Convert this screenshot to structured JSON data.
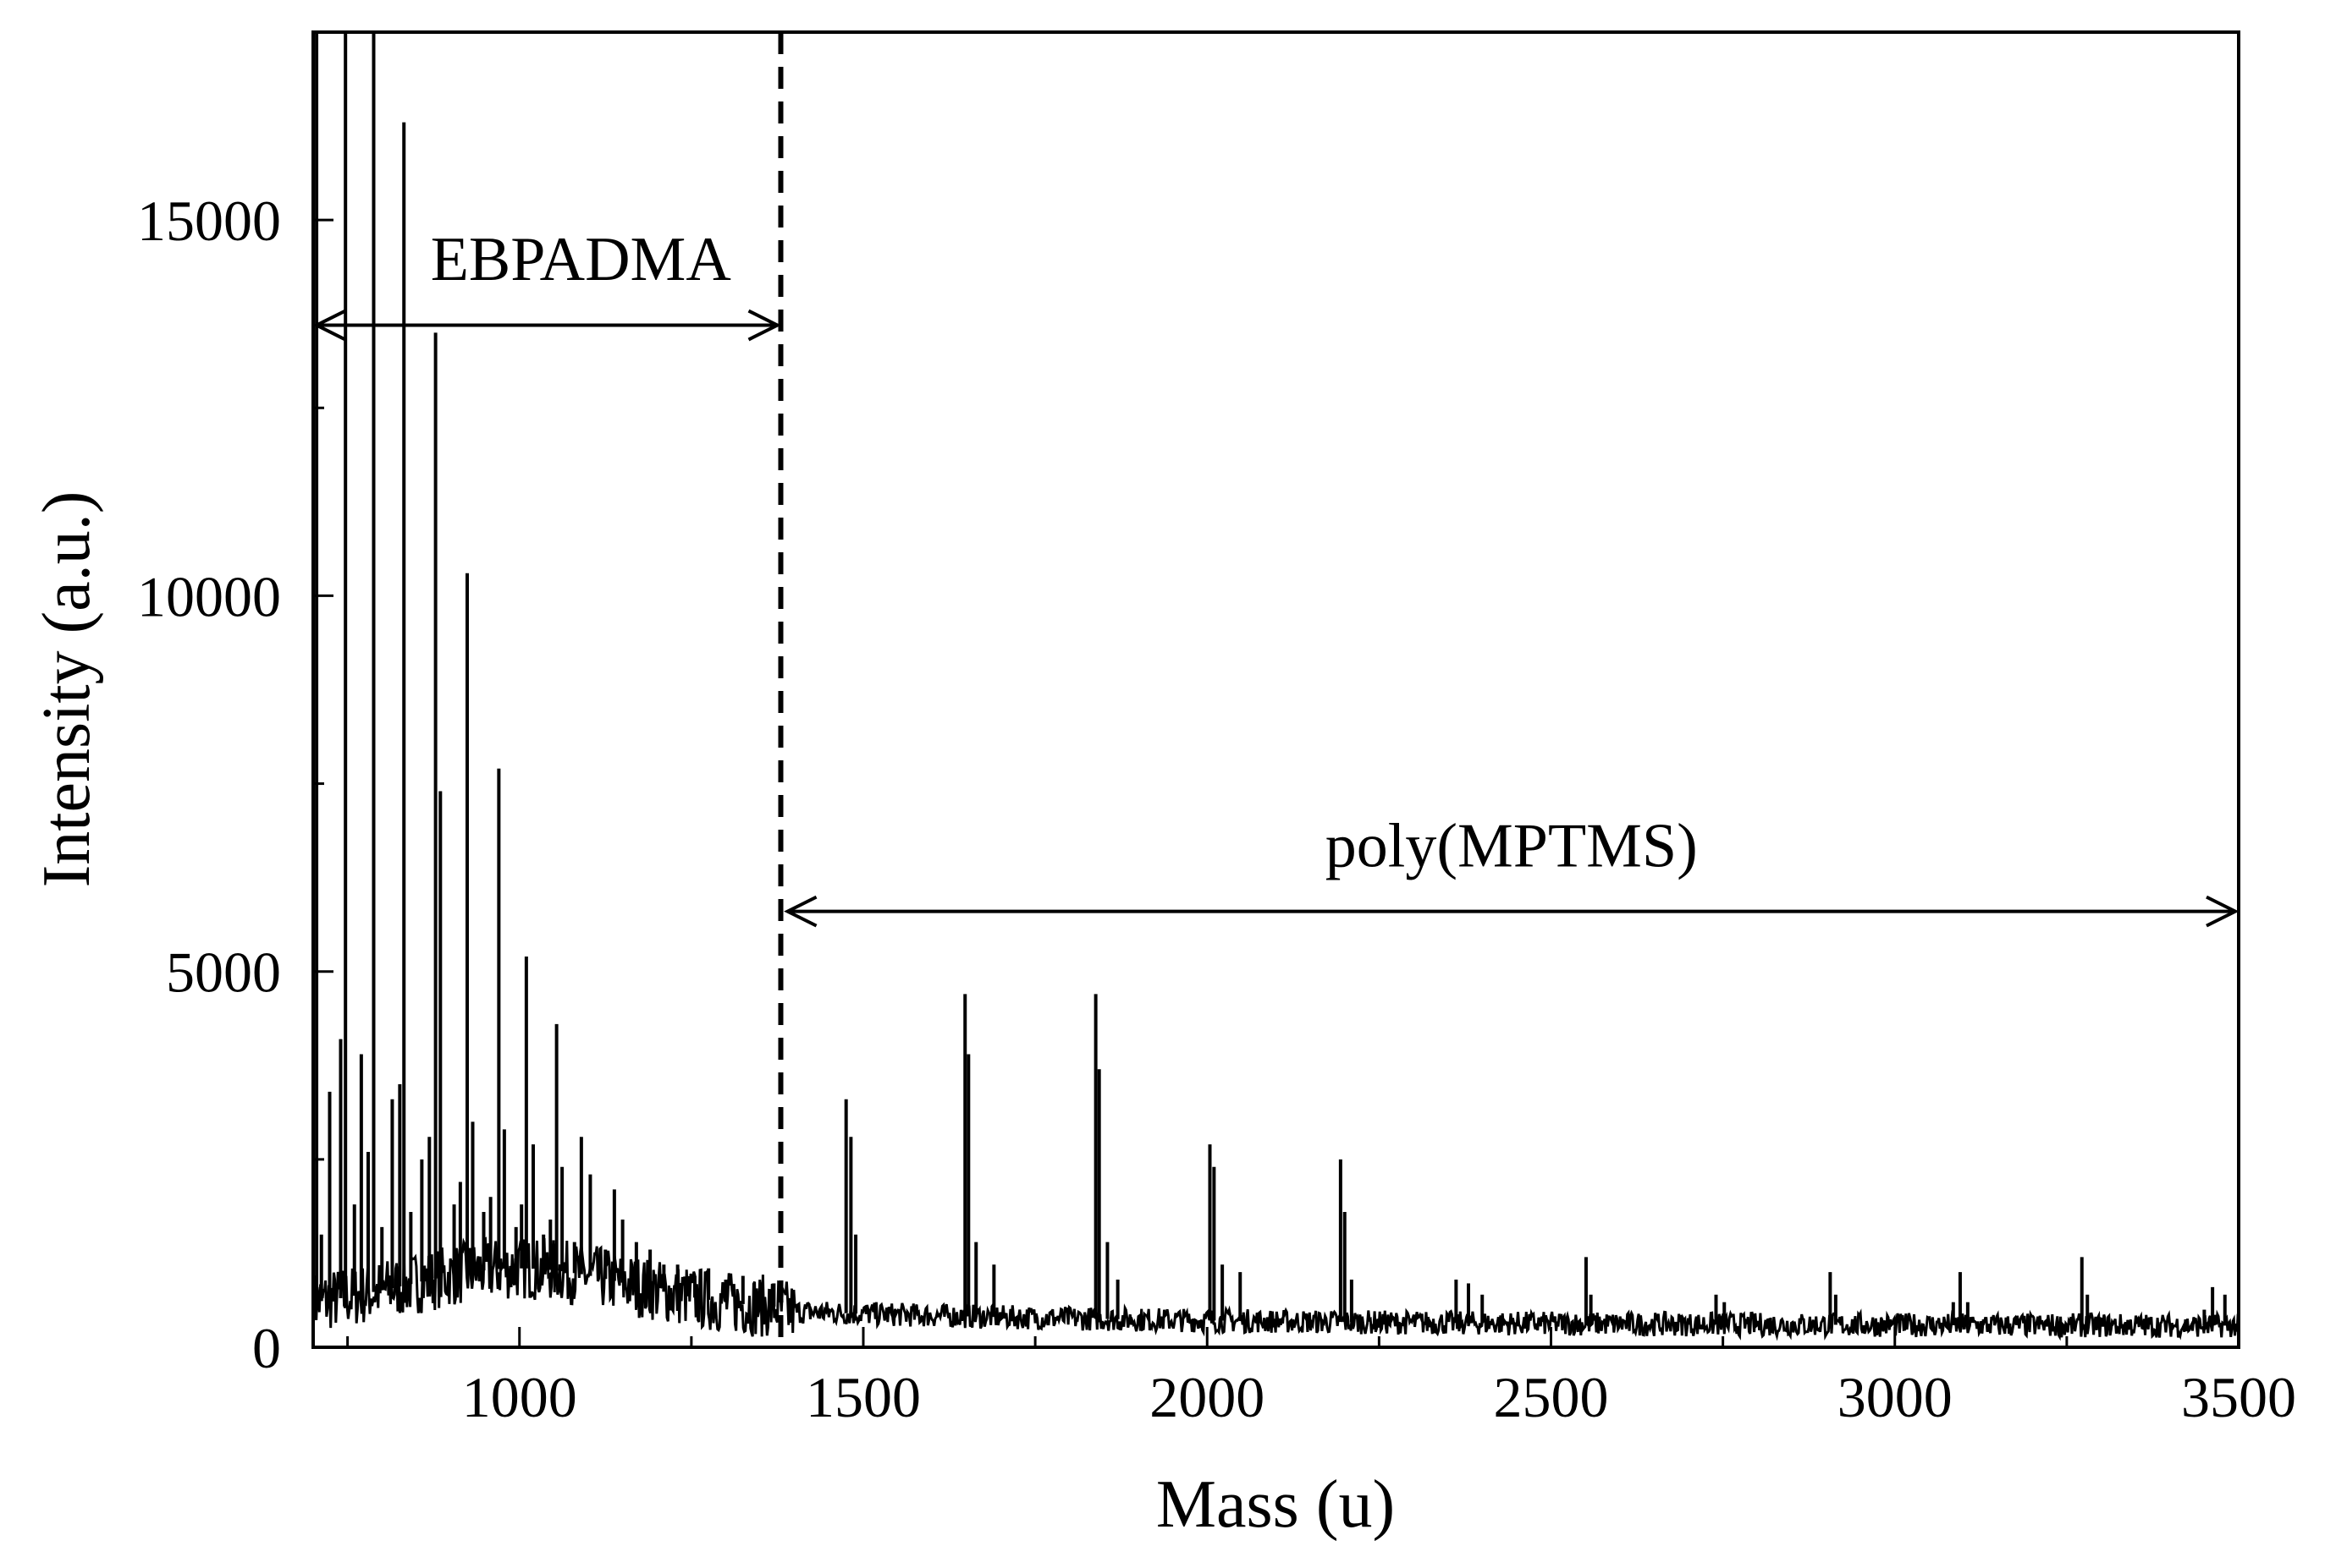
{
  "chart_data": {
    "type": "line",
    "title": "",
    "xlabel": "Mass (u)",
    "ylabel": "Intensity (a.u.)",
    "xlim": [
      700,
      3500
    ],
    "ylim": [
      0,
      17500
    ],
    "x_ticks": [
      1000,
      1500,
      2000,
      2500,
      3000,
      3500
    ],
    "y_ticks": [
      0,
      5000,
      10000,
      15000
    ],
    "grid": false,
    "colors": {
      "line": "#000000",
      "frame": "#000000",
      "background": "#ffffff"
    },
    "divider": {
      "x": 1380,
      "style": "dashed"
    },
    "regions": [
      {
        "label": "EBPADMA",
        "from": 700,
        "to": 1380,
        "arrow_y": 13600,
        "label_y": 14200
      },
      {
        "label": "poly(MPTMS)",
        "from": 1385,
        "to": 3500,
        "arrow_y": 5800,
        "label_y": 6400
      }
    ],
    "peaks": [
      {
        "x": 705,
        "y": 17500
      },
      {
        "x": 712,
        "y": 1500
      },
      {
        "x": 724,
        "y": 3400
      },
      {
        "x": 740,
        "y": 4100
      },
      {
        "x": 747,
        "y": 17500
      },
      {
        "x": 760,
        "y": 1900
      },
      {
        "x": 770,
        "y": 3900
      },
      {
        "x": 780,
        "y": 2600
      },
      {
        "x": 788,
        "y": 17500
      },
      {
        "x": 800,
        "y": 1600
      },
      {
        "x": 815,
        "y": 3300
      },
      {
        "x": 826,
        "y": 3500
      },
      {
        "x": 832,
        "y": 16300
      },
      {
        "x": 842,
        "y": 1800
      },
      {
        "x": 858,
        "y": 2500
      },
      {
        "x": 869,
        "y": 2800
      },
      {
        "x": 878,
        "y": 13500
      },
      {
        "x": 885,
        "y": 7400
      },
      {
        "x": 905,
        "y": 1900
      },
      {
        "x": 914,
        "y": 2200
      },
      {
        "x": 924,
        "y": 10300
      },
      {
        "x": 932,
        "y": 3000
      },
      {
        "x": 948,
        "y": 1800
      },
      {
        "x": 958,
        "y": 2000
      },
      {
        "x": 970,
        "y": 7700
      },
      {
        "x": 978,
        "y": 2900
      },
      {
        "x": 995,
        "y": 1600
      },
      {
        "x": 1003,
        "y": 1900
      },
      {
        "x": 1010,
        "y": 5200
      },
      {
        "x": 1020,
        "y": 2700
      },
      {
        "x": 1035,
        "y": 1500
      },
      {
        "x": 1045,
        "y": 1700
      },
      {
        "x": 1054,
        "y": 4300
      },
      {
        "x": 1062,
        "y": 2400
      },
      {
        "x": 1080,
        "y": 1400
      },
      {
        "x": 1090,
        "y": 2800
      },
      {
        "x": 1103,
        "y": 2300
      },
      {
        "x": 1125,
        "y": 1300
      },
      {
        "x": 1138,
        "y": 2100
      },
      {
        "x": 1150,
        "y": 1700
      },
      {
        "x": 1170,
        "y": 1400
      },
      {
        "x": 1190,
        "y": 1300
      },
      {
        "x": 1210,
        "y": 1100
      },
      {
        "x": 1230,
        "y": 1100
      },
      {
        "x": 1255,
        "y": 950
      },
      {
        "x": 1275,
        "y": 1050
      },
      {
        "x": 1300,
        "y": 900
      },
      {
        "x": 1325,
        "y": 950
      },
      {
        "x": 1350,
        "y": 850
      },
      {
        "x": 1370,
        "y": 850
      },
      {
        "x": 1475,
        "y": 3300
      },
      {
        "x": 1482,
        "y": 2800
      },
      {
        "x": 1489,
        "y": 1500
      },
      {
        "x": 1648,
        "y": 4700
      },
      {
        "x": 1653,
        "y": 3900
      },
      {
        "x": 1664,
        "y": 1400
      },
      {
        "x": 1690,
        "y": 1100
      },
      {
        "x": 1838,
        "y": 4700
      },
      {
        "x": 1843,
        "y": 3700
      },
      {
        "x": 1855,
        "y": 1400
      },
      {
        "x": 1870,
        "y": 900
      },
      {
        "x": 2004,
        "y": 2700
      },
      {
        "x": 2010,
        "y": 2400
      },
      {
        "x": 2022,
        "y": 1100
      },
      {
        "x": 2048,
        "y": 1000
      },
      {
        "x": 2194,
        "y": 2500
      },
      {
        "x": 2200,
        "y": 1800
      },
      {
        "x": 2210,
        "y": 900
      },
      {
        "x": 2362,
        "y": 900
      },
      {
        "x": 2380,
        "y": 850
      },
      {
        "x": 2400,
        "y": 700
      },
      {
        "x": 2551,
        "y": 1200
      },
      {
        "x": 2558,
        "y": 700
      },
      {
        "x": 2740,
        "y": 700
      },
      {
        "x": 2752,
        "y": 600
      },
      {
        "x": 2906,
        "y": 1000
      },
      {
        "x": 2914,
        "y": 700
      },
      {
        "x": 3085,
        "y": 600
      },
      {
        "x": 3095,
        "y": 1000
      },
      {
        "x": 3106,
        "y": 600
      },
      {
        "x": 3272,
        "y": 1200
      },
      {
        "x": 3280,
        "y": 700
      },
      {
        "x": 3450,
        "y": 500
      },
      {
        "x": 3462,
        "y": 800
      },
      {
        "x": 3480,
        "y": 700
      }
    ]
  }
}
